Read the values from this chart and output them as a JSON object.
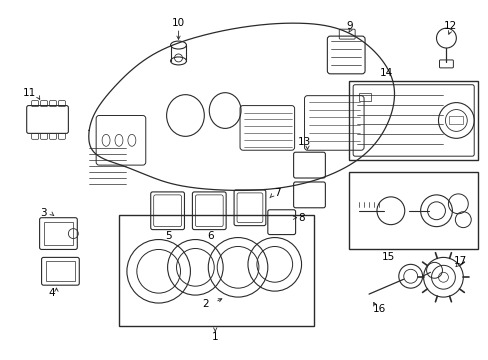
{
  "bg_color": "#ffffff",
  "fig_width": 4.89,
  "fig_height": 3.6,
  "dpi": 100,
  "line_color": "#2a2a2a",
  "label_color": "#000000",
  "label_fontsize": 7.5
}
